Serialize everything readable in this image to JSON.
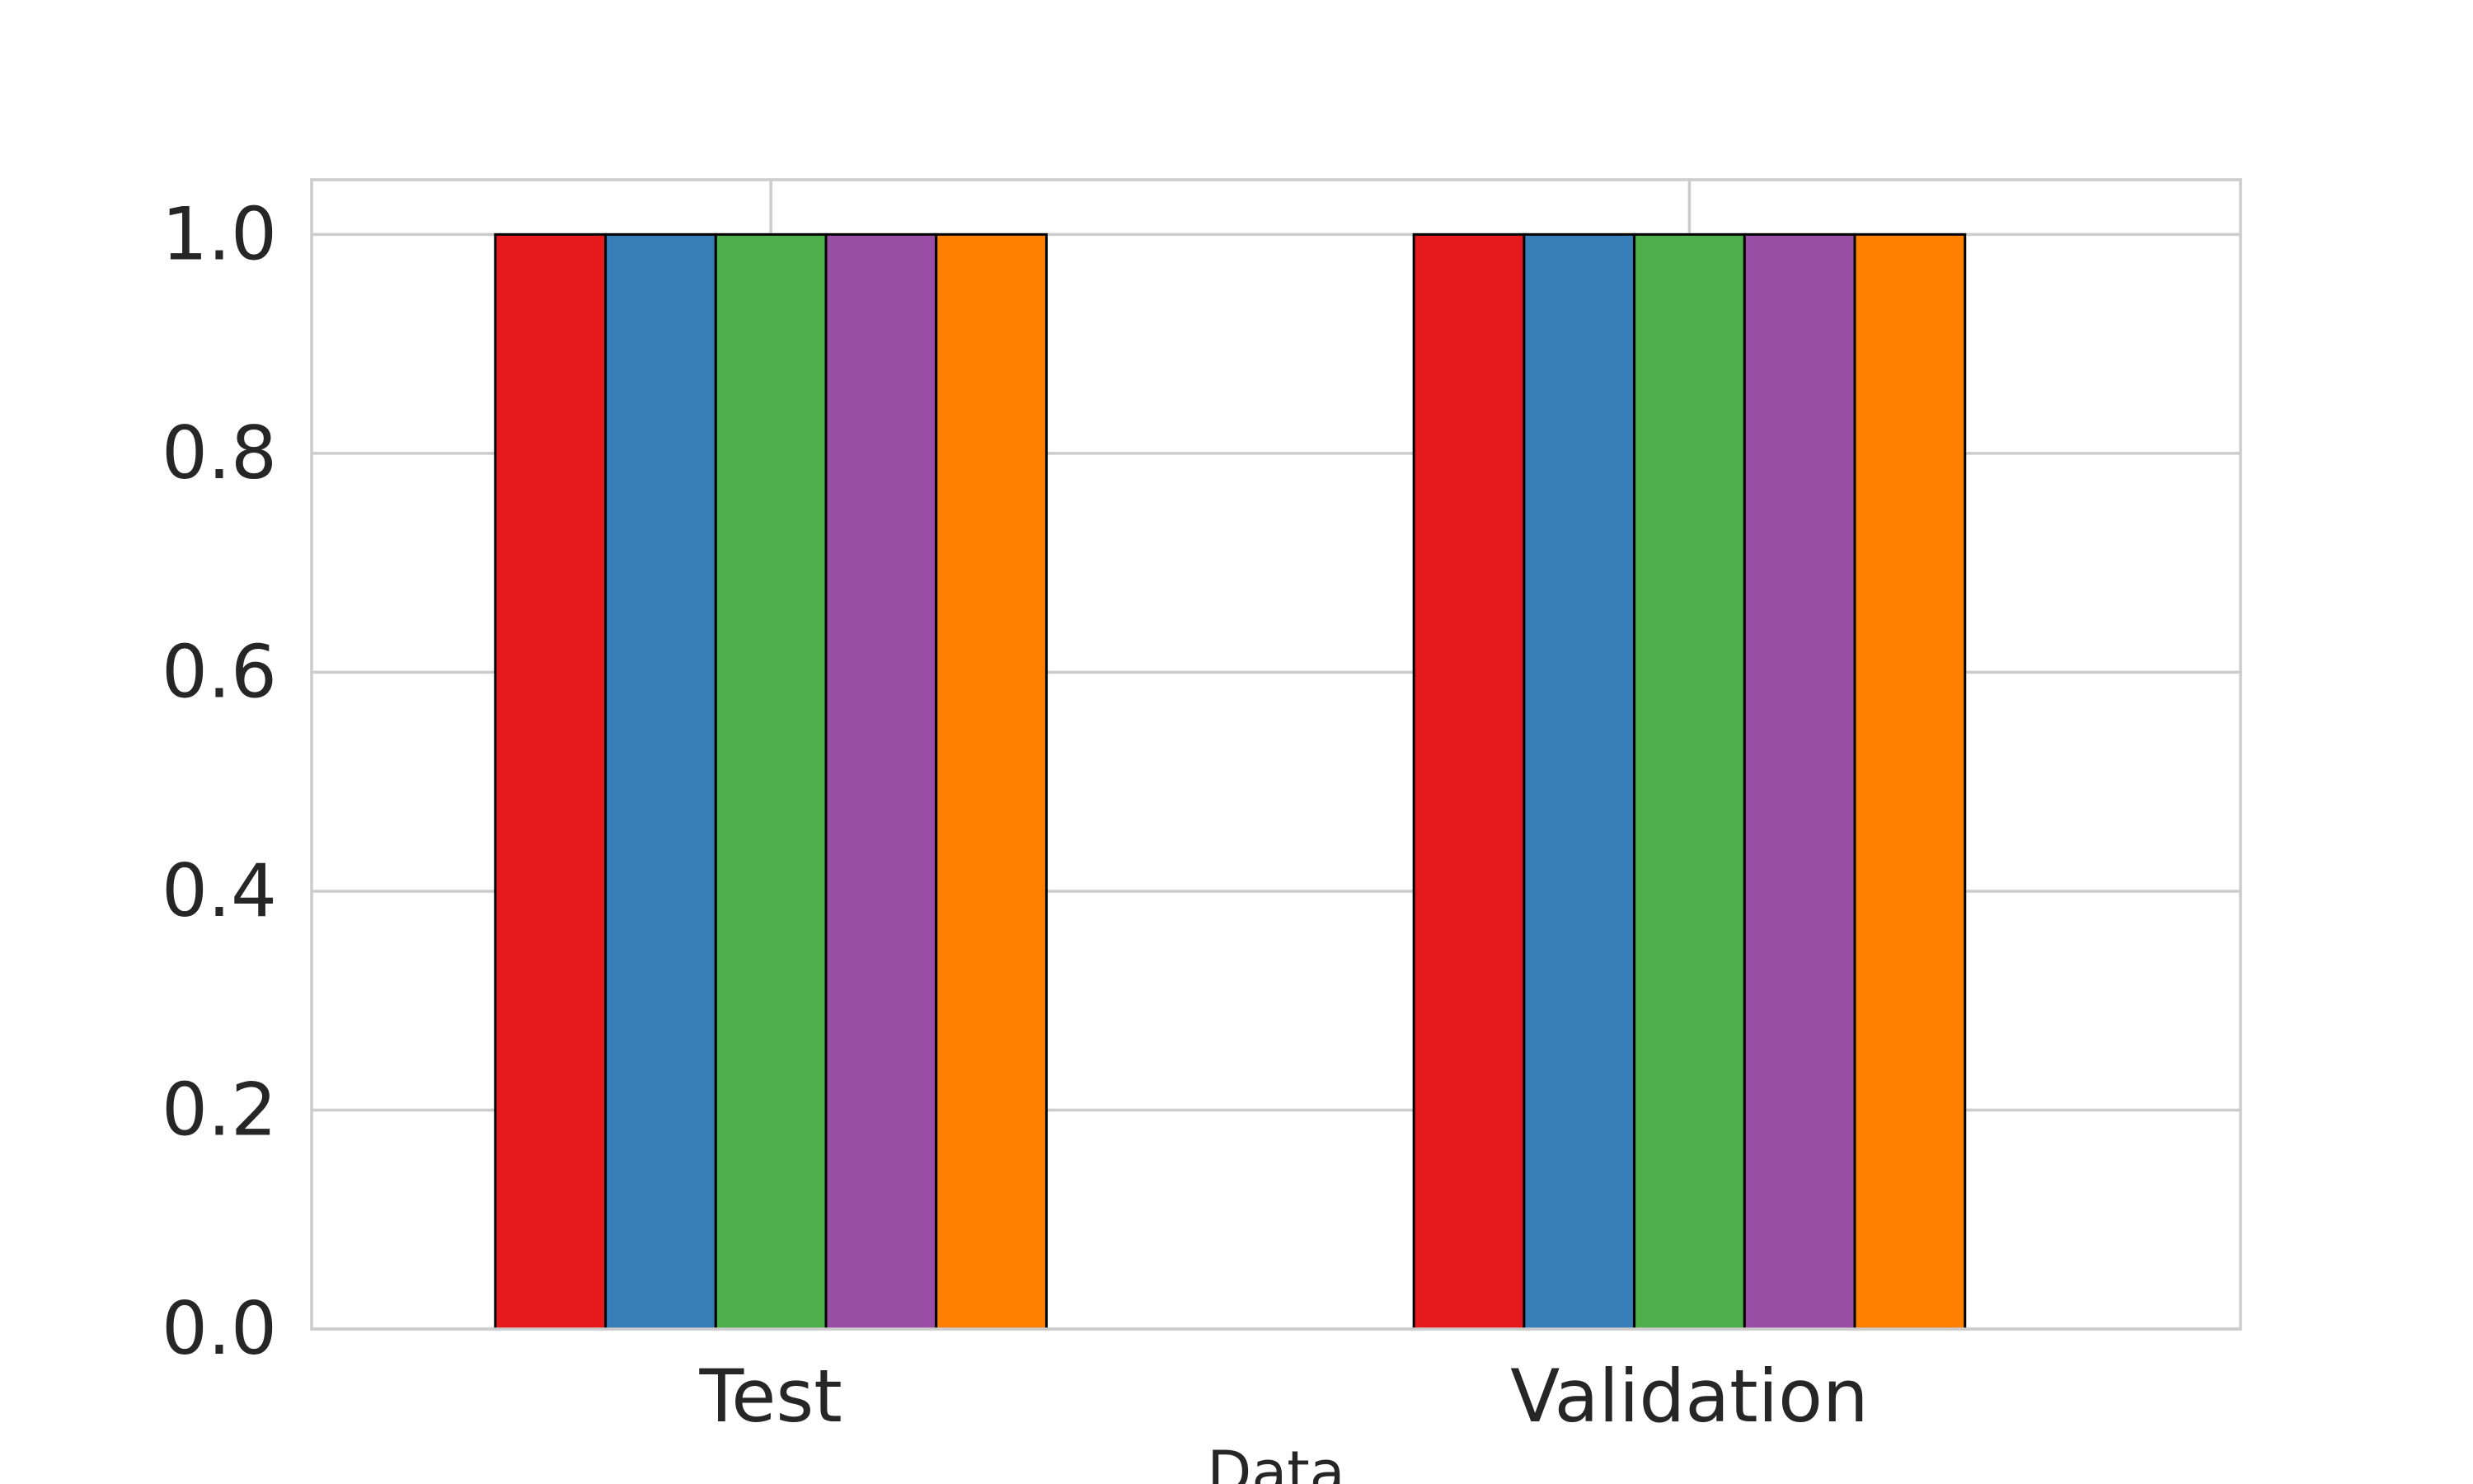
{
  "chart_data": {
    "type": "bar",
    "categories": [
      "Test",
      "Validation"
    ],
    "series": [
      {
        "values": [
          1.0,
          1.0
        ],
        "color": "#e41a1c"
      },
      {
        "values": [
          1.0,
          1.0
        ],
        "color": "#377eb8"
      },
      {
        "values": [
          1.0,
          1.0
        ],
        "color": "#4daf4a"
      },
      {
        "values": [
          1.0,
          1.0
        ],
        "color": "#984ea3"
      },
      {
        "values": [
          1.0,
          1.0
        ],
        "color": "#ff7f00"
      }
    ],
    "xlabel": "Data",
    "ylabel": "",
    "ylim": [
      0,
      1.05
    ],
    "yticks": [
      "0.0",
      "0.2",
      "0.4",
      "0.6",
      "0.8",
      "1.0"
    ],
    "grid": true,
    "legend": "none",
    "colors": {
      "grid": "#cccccc",
      "frame": "#cccccc",
      "bar_edge": "#000000",
      "text": "#262626"
    }
  }
}
